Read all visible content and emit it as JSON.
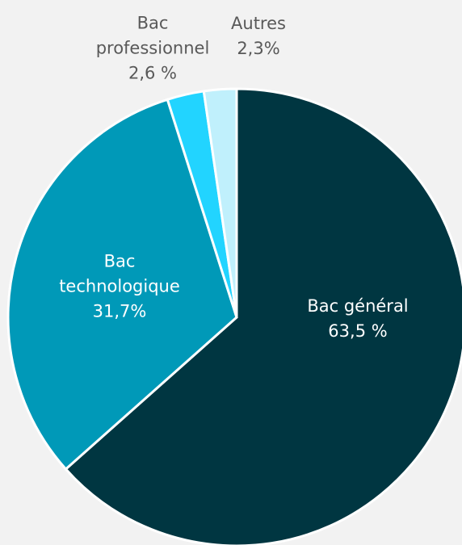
{
  "chart_data": {
    "type": "pie",
    "categories": [
      "Bac général",
      "Bac technologique",
      "Bac professionnel",
      "Autres"
    ],
    "values": [
      63.5,
      31.7,
      2.6,
      2.3
    ],
    "value_labels": [
      "63,5 %",
      "31,7%",
      "2,6 %",
      "2,3%"
    ],
    "colors": [
      "#003641",
      "#0099b8",
      "#22d4ff",
      "#c0f0fc"
    ]
  }
}
